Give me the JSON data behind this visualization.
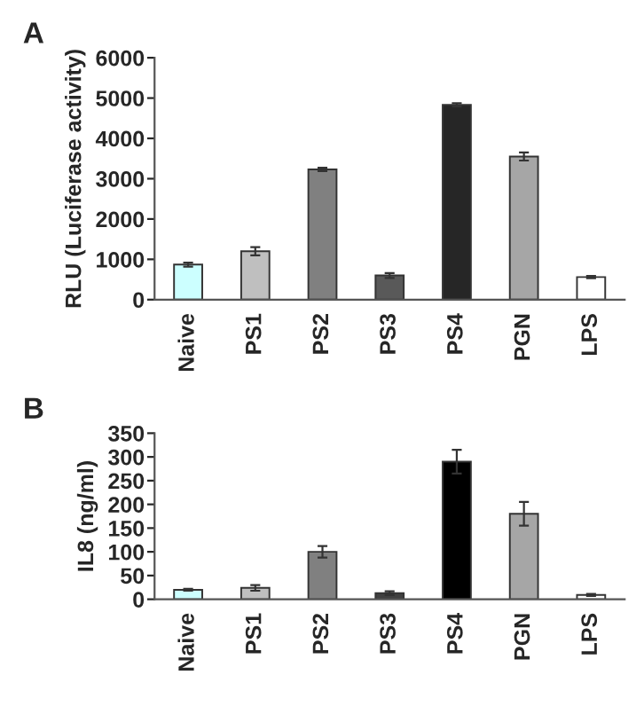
{
  "chart_data": [
    {
      "type": "bar",
      "title": "A",
      "ylabel": "RLU (Luciferase activity)",
      "categories": [
        "Naive",
        "PS1",
        "PS2",
        "PS3",
        "PS4",
        "PGN",
        "LPS"
      ],
      "values": [
        870,
        1200,
        3230,
        600,
        4830,
        3550,
        560
      ],
      "errors": [
        50,
        100,
        40,
        60,
        40,
        100,
        30
      ],
      "colors": [
        "#ccffff",
        "#bfbfbf",
        "#808080",
        "#595959",
        "#262626",
        "#a6a6a6",
        "#ffffff"
      ],
      "ylim": [
        0,
        6000
      ],
      "yticks": [
        0,
        1000,
        2000,
        3000,
        4000,
        5000,
        6000
      ],
      "grid": false,
      "legend": false
    },
    {
      "type": "bar",
      "title": "B",
      "ylabel": "IL8 (ng/ml)",
      "categories": [
        "Naive",
        "PS1",
        "PS2",
        "PS3",
        "PS4",
        "PGN",
        "LPS"
      ],
      "values": [
        20,
        24,
        100,
        13,
        290,
        180,
        9
      ],
      "errors": [
        2,
        6,
        12,
        4,
        25,
        25,
        2
      ],
      "colors": [
        "#ccffff",
        "#bfbfbf",
        "#808080",
        "#404040",
        "#000000",
        "#a6a6a6",
        "#ffffff"
      ],
      "ylim": [
        0,
        350
      ],
      "yticks": [
        0,
        50,
        100,
        150,
        200,
        250,
        300,
        350
      ],
      "grid": false,
      "legend": false
    }
  ]
}
